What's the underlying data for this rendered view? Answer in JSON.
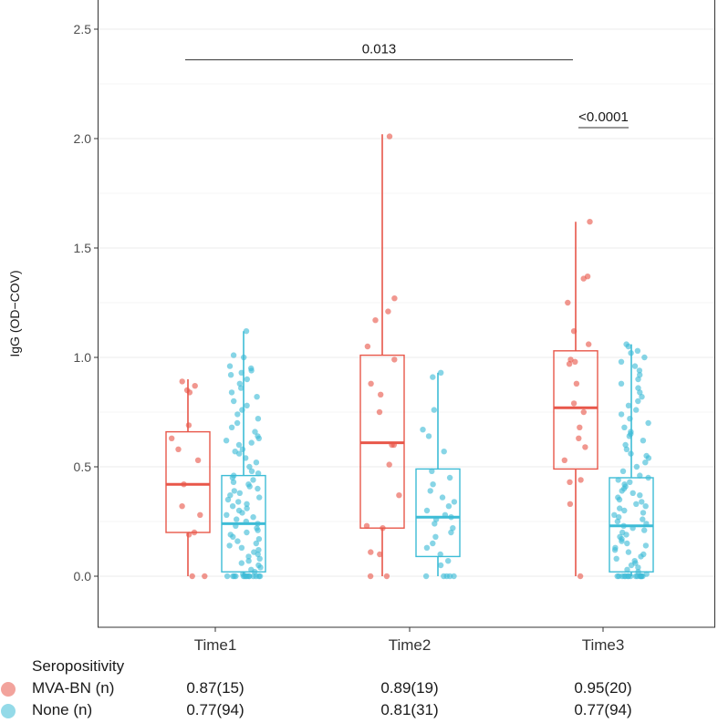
{
  "chart_data": {
    "type": "box-jitter",
    "ylabel": "IgG (OD−COV)",
    "xlabel": "",
    "categories": [
      "Time1",
      "Time2",
      "Time3"
    ],
    "ylim": [
      -0.23,
      2.62
    ],
    "yticks": [
      0.0,
      0.5,
      1.0,
      1.5,
      2.0,
      2.5
    ],
    "ytick_labels": [
      "0.0",
      "0.5",
      "1.0",
      "1.5",
      "2.0",
      "2.5"
    ],
    "grid": true,
    "legend_position": "bottom",
    "legend_title": "Seropositivity",
    "series": [
      {
        "name": "MVA-BN (n)",
        "color": "#E8574A",
        "boxes": [
          {
            "category": "Time1",
            "min": 0.0,
            "q1": 0.2,
            "median": 0.42,
            "q3": 0.66,
            "max": 0.9
          },
          {
            "category": "Time2",
            "min": 0.0,
            "q1": 0.22,
            "median": 0.61,
            "q3": 1.01,
            "max": 2.02
          },
          {
            "category": "Time3",
            "min": 0.0,
            "q1": 0.49,
            "median": 0.77,
            "q3": 1.03,
            "max": 1.62
          }
        ],
        "points": [
          [
            0.0,
            0.0,
            0.19,
            0.2,
            0.28,
            0.32,
            0.42,
            0.53,
            0.58,
            0.63,
            0.69,
            0.84,
            0.85,
            0.87,
            0.89
          ],
          [
            0.0,
            0.0,
            0.1,
            0.11,
            0.22,
            0.23,
            0.37,
            0.51,
            0.6,
            0.6,
            0.75,
            0.83,
            0.88,
            1.05,
            1.17,
            1.21,
            1.27,
            2.01,
            0.99
          ],
          [
            0.0,
            0.33,
            0.43,
            0.44,
            0.53,
            0.59,
            0.63,
            0.68,
            0.79,
            0.88,
            0.97,
            0.99,
            1.06,
            1.12,
            1.25,
            1.36,
            1.37,
            1.62,
            0.75,
            0.98
          ]
        ]
      },
      {
        "name": "None (n)",
        "color": "#3DBCD6",
        "boxes": [
          {
            "category": "Time1",
            "min": 0.0,
            "q1": 0.02,
            "median": 0.24,
            "q3": 0.46,
            "max": 1.12
          },
          {
            "category": "Time2",
            "min": 0.0,
            "q1": 0.09,
            "median": 0.27,
            "q3": 0.49,
            "max": 0.93
          },
          {
            "category": "Time3",
            "min": 0.0,
            "q1": 0.02,
            "median": 0.23,
            "q3": 0.45,
            "max": 1.06
          }
        ],
        "points": [
          [
            0.0,
            0.0,
            0.0,
            0.0,
            0.0,
            0.0,
            0.0,
            0.0,
            0.0,
            0.0,
            0.0,
            0.0,
            0.0,
            0.0,
            0.01,
            0.02,
            0.03,
            0.04,
            0.05,
            0.06,
            0.07,
            0.08,
            0.09,
            0.1,
            0.11,
            0.12,
            0.13,
            0.14,
            0.15,
            0.16,
            0.17,
            0.18,
            0.19,
            0.2,
            0.21,
            0.22,
            0.23,
            0.24,
            0.25,
            0.26,
            0.27,
            0.28,
            0.29,
            0.3,
            0.31,
            0.32,
            0.33,
            0.34,
            0.35,
            0.36,
            0.37,
            0.38,
            0.39,
            0.4,
            0.41,
            0.42,
            0.43,
            0.44,
            0.45,
            0.46,
            0.47,
            0.48,
            0.5,
            0.52,
            0.54,
            0.56,
            0.58,
            0.6,
            0.61,
            0.62,
            0.63,
            0.64,
            0.66,
            0.68,
            0.7,
            0.72,
            0.74,
            0.76,
            0.78,
            0.8,
            0.82,
            0.84,
            0.86,
            0.88,
            0.9,
            0.92,
            0.93,
            0.94,
            0.95,
            0.96,
            1.0,
            1.01,
            1.12,
            0.57
          ],
          [
            0.0,
            0.0,
            0.0,
            0.0,
            0.0,
            0.05,
            0.07,
            0.1,
            0.13,
            0.15,
            0.18,
            0.2,
            0.22,
            0.24,
            0.26,
            0.27,
            0.28,
            0.3,
            0.32,
            0.34,
            0.36,
            0.39,
            0.42,
            0.45,
            0.48,
            0.57,
            0.64,
            0.67,
            0.76,
            0.91,
            0.93
          ],
          [
            0.0,
            0.0,
            0.0,
            0.0,
            0.0,
            0.0,
            0.0,
            0.0,
            0.0,
            0.0,
            0.0,
            0.0,
            0.0,
            0.0,
            0.0,
            0.01,
            0.02,
            0.03,
            0.04,
            0.05,
            0.06,
            0.07,
            0.08,
            0.09,
            0.1,
            0.11,
            0.12,
            0.13,
            0.14,
            0.15,
            0.16,
            0.17,
            0.18,
            0.19,
            0.2,
            0.21,
            0.22,
            0.23,
            0.24,
            0.25,
            0.26,
            0.27,
            0.28,
            0.29,
            0.3,
            0.31,
            0.32,
            0.33,
            0.34,
            0.35,
            0.36,
            0.37,
            0.38,
            0.39,
            0.4,
            0.41,
            0.42,
            0.43,
            0.44,
            0.45,
            0.46,
            0.48,
            0.5,
            0.52,
            0.54,
            0.56,
            0.58,
            0.6,
            0.62,
            0.64,
            0.66,
            0.68,
            0.7,
            0.72,
            0.74,
            0.76,
            0.78,
            0.8,
            0.82,
            0.84,
            0.86,
            0.88,
            0.9,
            0.92,
            0.94,
            0.96,
            0.98,
            1.0,
            1.02,
            1.03,
            1.05,
            1.06,
            0.65,
            0.55
          ]
        ]
      }
    ],
    "annotations": [
      {
        "text": "0.013",
        "from_category": "Time1",
        "to_category": "Time3",
        "y": 2.36
      },
      {
        "text": "<0.0001",
        "from_category": "Time3",
        "from_series": "MVA-BN (n)",
        "to_series": "None (n)",
        "y": 2.05
      }
    ],
    "table": {
      "rows": [
        {
          "label": "MVA-BN (n)",
          "color": "#E8574A",
          "values": [
            "0.87(15)",
            "0.89(19)",
            "0.95(20)"
          ]
        },
        {
          "label": "None (n)",
          "color": "#3DBCD6",
          "values": [
            "0.77(94)",
            "0.81(31)",
            "0.77(94)"
          ]
        }
      ]
    }
  }
}
